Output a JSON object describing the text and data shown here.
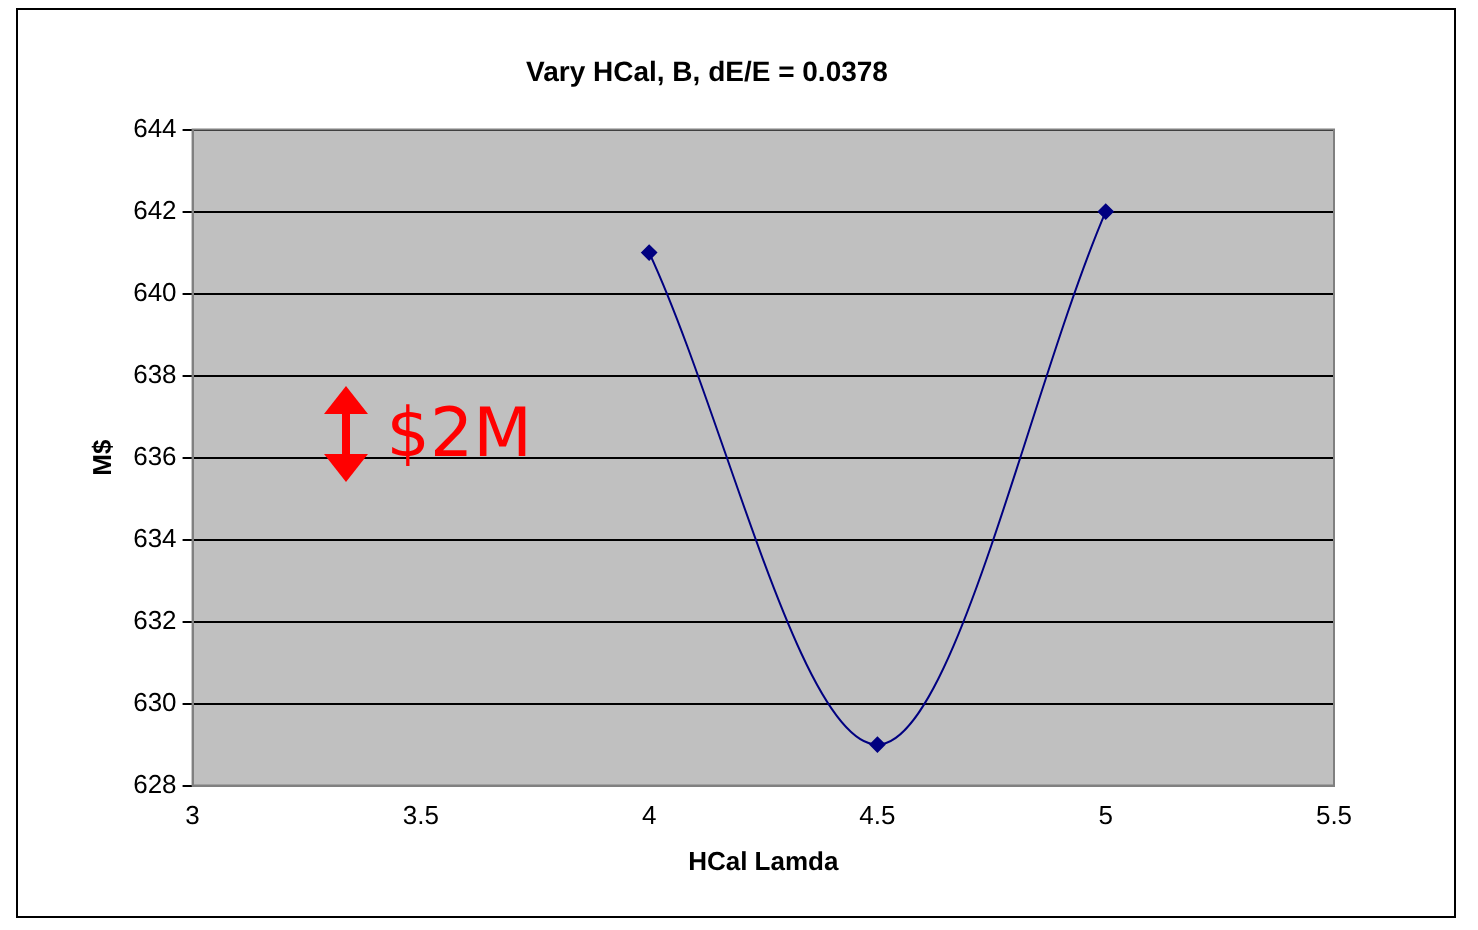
{
  "chart_data": {
    "type": "line",
    "title": "Vary HCal, B, dE/E = 0.0378",
    "xlabel": "HCal Lamda",
    "ylabel": "M$",
    "x": [
      4,
      4.5,
      5
    ],
    "series": [
      {
        "color": "#000080",
        "values": [
          641,
          629,
          642
        ]
      }
    ],
    "xlim": [
      3,
      5.5
    ],
    "xticks": [
      3,
      3.5,
      4,
      4.5,
      5,
      5.5
    ],
    "ylim": [
      628,
      644
    ],
    "yticks": [
      628,
      630,
      632,
      634,
      636,
      638,
      640,
      642,
      644
    ],
    "grid": "y",
    "legend": false,
    "marker": "diamond",
    "line_style": "solid",
    "annotations": [
      "$2M"
    ]
  }
}
